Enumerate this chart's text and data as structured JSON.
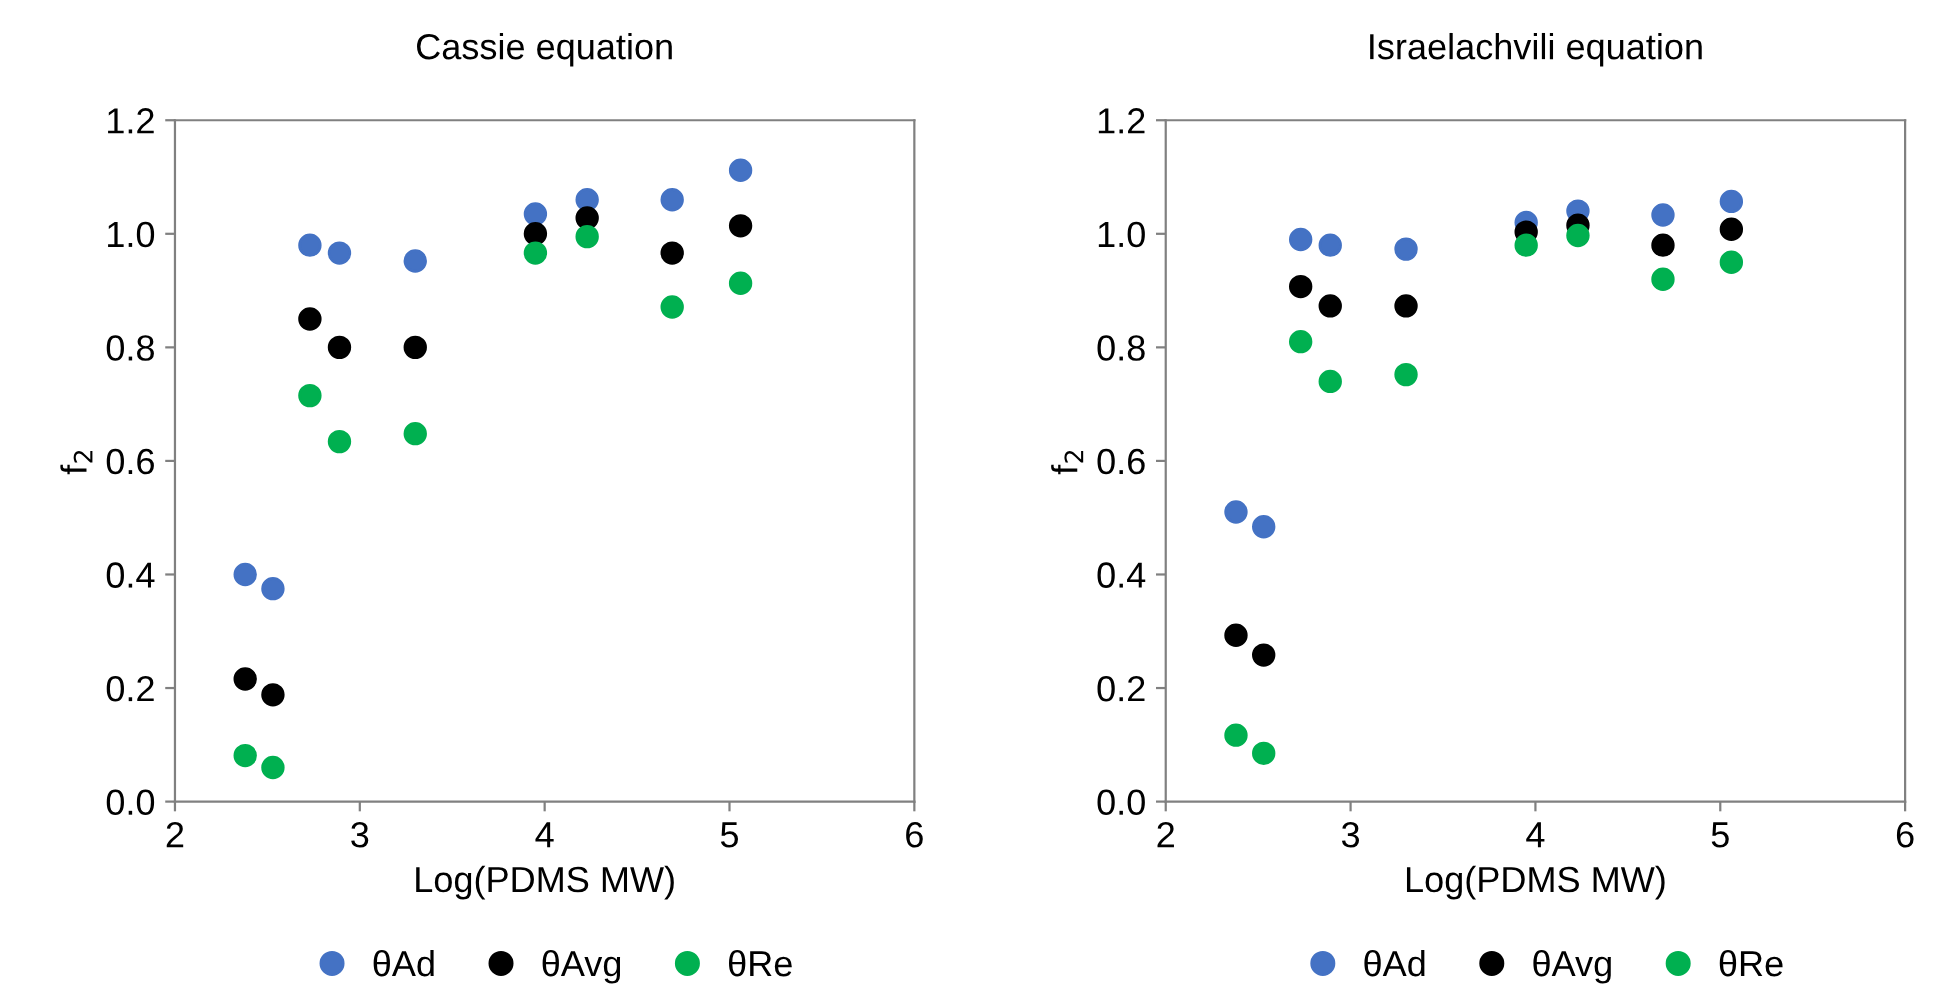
{
  "chart_data": [
    {
      "type": "scatter",
      "title": "Cassie equation",
      "xlabel": "Log(PDMS MW)",
      "ylabel": "f$_{2}$",
      "x": [
        2.38,
        2.53,
        2.73,
        2.89,
        3.3,
        3.95,
        4.23,
        4.69,
        5.06
      ],
      "series": [
        {
          "name": "θAd",
          "color": "#4472c4",
          "values": [
            0.4,
            0.375,
            0.98,
            0.966,
            0.952,
            1.035,
            1.06,
            1.06,
            1.112
          ]
        },
        {
          "name": "θAvg",
          "color": "#000000",
          "values": [
            0.216,
            0.188,
            0.85,
            0.8,
            0.8,
            1.0,
            1.028,
            0.966,
            1.014
          ]
        },
        {
          "name": "θRe",
          "color": "#00b050",
          "values": [
            0.081,
            0.06,
            0.715,
            0.634,
            0.648,
            0.966,
            0.995,
            0.871,
            0.913
          ]
        }
      ],
      "xlim": [
        2,
        6
      ],
      "xticks": [
        2,
        3,
        4,
        5,
        6
      ],
      "ylim": [
        0,
        1.2
      ],
      "yticks": [
        {
          "value": 0,
          "label": "0.0"
        },
        {
          "value": 0.2,
          "label": "0.2"
        },
        {
          "value": 0.4,
          "label": "0.4"
        },
        {
          "value": 0.6,
          "label": "0.6"
        },
        {
          "value": 0.8,
          "label": "0.8"
        },
        {
          "value": 1.0,
          "label": "1.0"
        },
        {
          "value": 1.2,
          "label": "1.2"
        }
      ],
      "marker": "circle",
      "grid": false,
      "legend": "bottom"
    },
    {
      "type": "scatter",
      "title": "Israelachvili equation",
      "xlabel": "Log(PDMS MW)",
      "ylabel": "f$_{2}$",
      "x": [
        2.38,
        2.53,
        2.73,
        2.89,
        3.3,
        3.95,
        4.23,
        4.69,
        5.06
      ],
      "series": [
        {
          "name": "θAd",
          "color": "#4472c4",
          "values": [
            0.51,
            0.484,
            0.99,
            0.98,
            0.973,
            1.02,
            1.04,
            1.033,
            1.057
          ]
        },
        {
          "name": "θAvg",
          "color": "#000000",
          "values": [
            0.293,
            0.258,
            0.907,
            0.873,
            0.873,
            1.003,
            1.015,
            0.98,
            1.008
          ]
        },
        {
          "name": "θRe",
          "color": "#00b050",
          "values": [
            0.117,
            0.085,
            0.81,
            0.74,
            0.752,
            0.98,
            0.997,
            0.92,
            0.95
          ]
        }
      ],
      "xlim": [
        2,
        6
      ],
      "xticks": [
        2,
        3,
        4,
        5,
        6
      ],
      "ylim": [
        0,
        1.2
      ],
      "yticks": [
        {
          "value": 0,
          "label": "0.0"
        },
        {
          "value": 0.2,
          "label": "0.2"
        },
        {
          "value": 0.4,
          "label": "0.4"
        },
        {
          "value": 0.6,
          "label": "0.6"
        },
        {
          "value": 0.8,
          "label": "0.8"
        },
        {
          "value": 1.0,
          "label": "1.0"
        },
        {
          "value": 1.2,
          "label": "1.2"
        }
      ],
      "marker": "circle",
      "grid": false,
      "legend": "bottom"
    }
  ]
}
